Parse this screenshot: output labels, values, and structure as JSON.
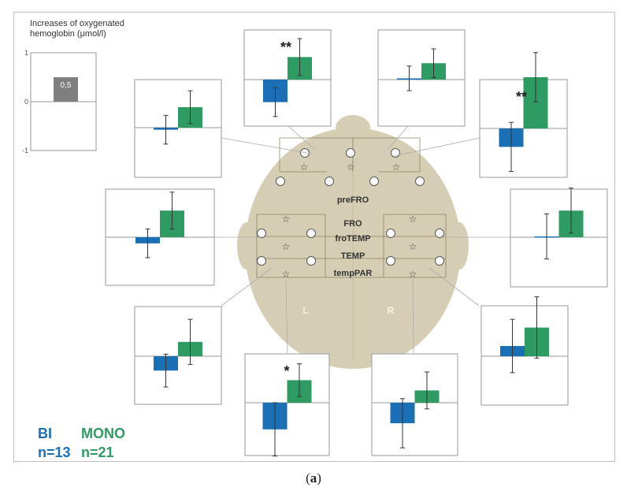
{
  "figure": {
    "caption_open": "(",
    "caption_letter": "a",
    "caption_close": ")",
    "y_title": "Increases of oxygenated hemoglobin (μmol/l)",
    "scale_ticks": [
      "1",
      "0",
      "-1"
    ],
    "scale_bar_value_label": "0,5",
    "regions": [
      "preFRO",
      "FRO",
      "froTEMP",
      "TEMP",
      "tempPAR"
    ],
    "hemisphere_left": "L",
    "hemisphere_right": "R"
  },
  "legend": {
    "bi_label": "BI",
    "bi_n": "n=13",
    "mono_label": "MONO",
    "mono_n": "n=21"
  },
  "colors": {
    "bi": "#1a6fb5",
    "mono": "#2e9b62",
    "scale_bar": "#7f7f7f",
    "head": "#d6ceb4"
  },
  "chart_data": [
    {
      "type": "bar",
      "series": [
        {
          "name": "BI",
          "values": [
            0.5
          ]
        }
      ],
      "ylim": [
        -1,
        1
      ],
      "note": "scale reference",
      "value_label": "0,5"
    },
    {
      "type": "bar",
      "categories": [
        "BI",
        "MONO"
      ],
      "values": [
        -0.05,
        0.5
      ],
      "errors": [
        0.35,
        0.4
      ],
      "significance": ""
    },
    {
      "type": "bar",
      "categories": [
        "BI",
        "MONO"
      ],
      "values": [
        -0.55,
        0.55
      ],
      "errors": [
        0.35,
        0.45
      ],
      "significance": "**"
    },
    {
      "type": "bar",
      "categories": [
        "BI",
        "MONO"
      ],
      "values": [
        0.03,
        0.4
      ],
      "errors": [
        0.3,
        0.35
      ],
      "significance": ""
    },
    {
      "type": "bar",
      "categories": [
        "BI",
        "MONO"
      ],
      "values": [
        -0.45,
        1.25
      ],
      "errors": [
        0.6,
        0.6
      ],
      "significance": "**"
    },
    {
      "type": "bar",
      "categories": [
        "BI",
        "MONO"
      ],
      "values": [
        -0.15,
        0.65
      ],
      "errors": [
        0.35,
        0.45
      ],
      "significance": ""
    },
    {
      "type": "bar",
      "categories": [
        "BI",
        "MONO"
      ],
      "values": [
        0.02,
        0.65
      ],
      "errors": [
        0.55,
        0.55
      ],
      "significance": ""
    },
    {
      "type": "bar",
      "categories": [
        "BI",
        "MONO"
      ],
      "values": [
        -0.35,
        0.35
      ],
      "errors": [
        0.4,
        0.55
      ],
      "significance": ""
    },
    {
      "type": "bar",
      "categories": [
        "BI",
        "MONO"
      ],
      "values": [
        0.25,
        0.7
      ],
      "errors": [
        0.65,
        0.75
      ],
      "significance": ""
    },
    {
      "type": "bar",
      "categories": [
        "BI",
        "MONO"
      ],
      "values": [
        -0.65,
        0.55
      ],
      "errors": [
        0.65,
        0.4
      ],
      "significance": "*"
    },
    {
      "type": "bar",
      "categories": [
        "BI",
        "MONO"
      ],
      "values": [
        -0.5,
        0.3
      ],
      "errors": [
        0.6,
        0.45
      ],
      "significance": ""
    }
  ]
}
